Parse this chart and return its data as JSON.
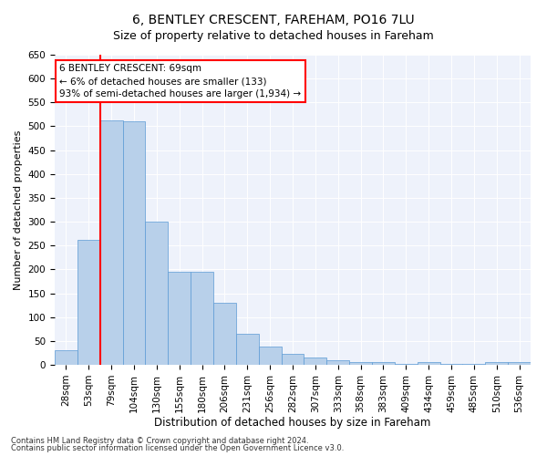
{
  "title": "6, BENTLEY CRESCENT, FAREHAM, PO16 7LU",
  "subtitle": "Size of property relative to detached houses in Fareham",
  "xlabel": "Distribution of detached houses by size in Fareham",
  "ylabel": "Number of detached properties",
  "categories": [
    "28sqm",
    "53sqm",
    "79sqm",
    "104sqm",
    "130sqm",
    "155sqm",
    "180sqm",
    "206sqm",
    "231sqm",
    "256sqm",
    "282sqm",
    "307sqm",
    "333sqm",
    "358sqm",
    "383sqm",
    "409sqm",
    "434sqm",
    "459sqm",
    "485sqm",
    "510sqm",
    "536sqm"
  ],
  "values": [
    30,
    262,
    512,
    510,
    300,
    195,
    195,
    130,
    65,
    38,
    22,
    15,
    10,
    5,
    5,
    2,
    5,
    2,
    2,
    5,
    5
  ],
  "bar_color": "#b8d0ea",
  "bar_edge_color": "#5b9bd5",
  "vline_color": "red",
  "vline_x": 1.5,
  "annotation_text": "6 BENTLEY CRESCENT: 69sqm\n← 6% of detached houses are smaller (133)\n93% of semi-detached houses are larger (1,934) →",
  "annotation_box_color": "white",
  "annotation_box_edge_color": "red",
  "ylim": [
    0,
    650
  ],
  "yticks": [
    0,
    50,
    100,
    150,
    200,
    250,
    300,
    350,
    400,
    450,
    500,
    550,
    600,
    650
  ],
  "footnote1": "Contains HM Land Registry data © Crown copyright and database right 2024.",
  "footnote2": "Contains public sector information licensed under the Open Government Licence v3.0.",
  "bg_color": "#eef2fb",
  "title_fontsize": 10,
  "subtitle_fontsize": 9,
  "xlabel_fontsize": 8.5,
  "ylabel_fontsize": 8,
  "tick_fontsize": 7.5,
  "annotation_fontsize": 7.5,
  "footnote_fontsize": 6
}
